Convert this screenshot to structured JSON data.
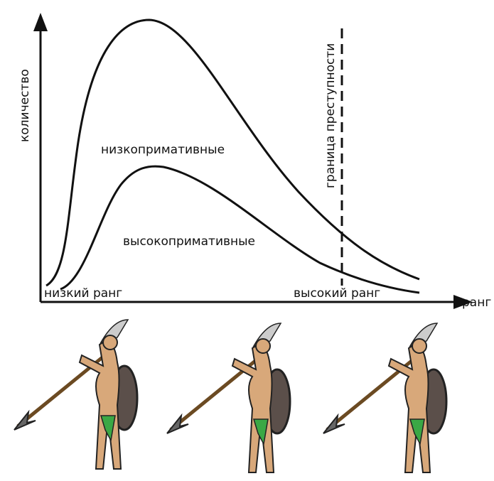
{
  "axes": {
    "y_label": "количество",
    "x_label": "ранг",
    "x_low": "низкий ранг",
    "x_high": "высокий ранг"
  },
  "curves": {
    "low": "низкопримативные",
    "high": "высокопримативные"
  },
  "boundary": "граница преступности"
}
